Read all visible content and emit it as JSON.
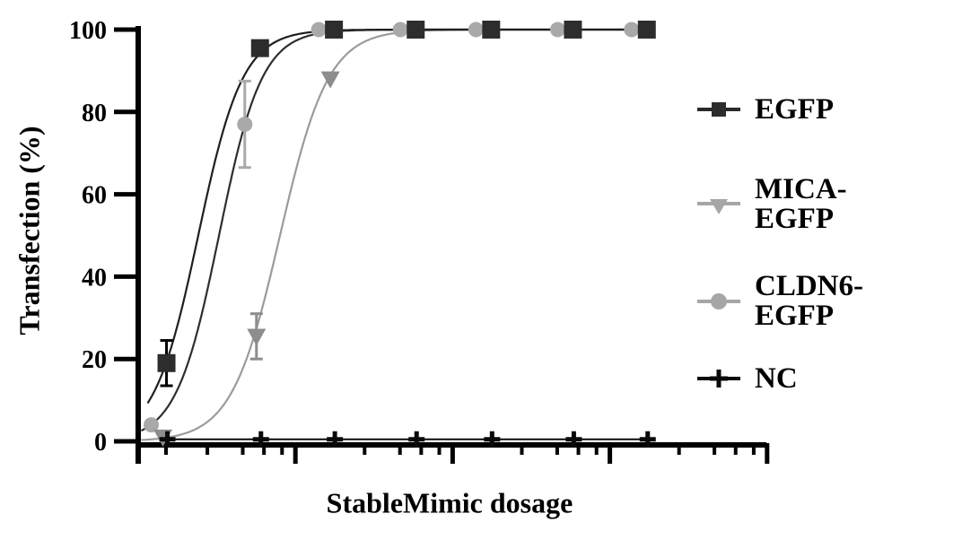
{
  "figure": {
    "x_axis_label": "StableMimic dosage",
    "y_axis_label": "Transfection (%)"
  },
  "legend": {
    "items": [
      {
        "label": "EGFP",
        "marker": "square",
        "marker_color": "#2d2d2d",
        "line_color": "#2a2a2a"
      },
      {
        "label": "MICA-EGFP",
        "marker": "triangle-down",
        "marker_color": "#a6a6a6",
        "line_color": "#a6a6a6"
      },
      {
        "label": "CLDN6-EGFP",
        "marker": "circle",
        "marker_color": "#a6a6a6",
        "line_color": "#a6a6a6"
      },
      {
        "label": "NC",
        "marker": "plus",
        "marker_color": "#0a0a0a",
        "line_color": "#0a0a0a"
      }
    ]
  },
  "chart_data": {
    "type": "line",
    "title": "",
    "xlabel": "StableMimic dosage",
    "ylabel": "Transfection (%)",
    "x_axis": {
      "scale": "log",
      "decades": 4,
      "tick_labels_shown": false
    },
    "y_axis": {
      "ticks": [
        "0",
        "20",
        "40",
        "60",
        "80",
        "100"
      ],
      "tick_values": [
        0,
        20,
        40,
        60,
        80,
        100
      ],
      "range": [
        0,
        100
      ]
    },
    "legend_position": "right",
    "grid": false,
    "dose_log_positions": [
      0.18,
      0.775,
      1.245,
      1.765,
      2.245,
      2.765,
      3.235
    ],
    "series": [
      {
        "name": "EGFP",
        "marker": "square",
        "marker_color": "#2d2d2d",
        "line_color": "#1f1f1f",
        "values": [
          19,
          95.5,
          100,
          100,
          100,
          100,
          100
        ],
        "errors": [
          5.5,
          0,
          0,
          0,
          0,
          0,
          0
        ],
        "fit": {
          "ec50_log": 0.382,
          "slope_log": 0.325,
          "start_log": 0.06
        }
      },
      {
        "name": "MICA-EGFP",
        "marker": "triangle-down",
        "marker_color": "#8d8d8d",
        "line_color": "#9b9b9b",
        "values": [
          1,
          25.5,
          88,
          100,
          100,
          100,
          100
        ],
        "errors": [
          0,
          5.5,
          0,
          0,
          0,
          0,
          0
        ],
        "fit": {
          "ec50_log": 0.902,
          "slope_log": 0.354,
          "start_log": 0.02
        }
      },
      {
        "name": "CLDN6-EGFP",
        "marker": "circle",
        "marker_color": "#a9a9a9",
        "line_color": "#2e2e2e",
        "values": [
          4,
          77,
          100,
          100,
          100,
          100,
          100
        ],
        "errors": [
          0,
          10.5,
          0,
          0,
          0,
          0,
          0
        ],
        "fit": {
          "ec50_log": 0.514,
          "slope_log": 0.314,
          "start_log": 0.02
        }
      },
      {
        "name": "NC",
        "marker": "plus",
        "marker_color": "#0a0a0a",
        "line_color": "#0a0a0a",
        "values": [
          0.5,
          0.5,
          0.5,
          0.5,
          0.5,
          0.5,
          0.5
        ],
        "errors": [
          0,
          0,
          0,
          0,
          0,
          0,
          0
        ],
        "fit": null
      }
    ]
  }
}
